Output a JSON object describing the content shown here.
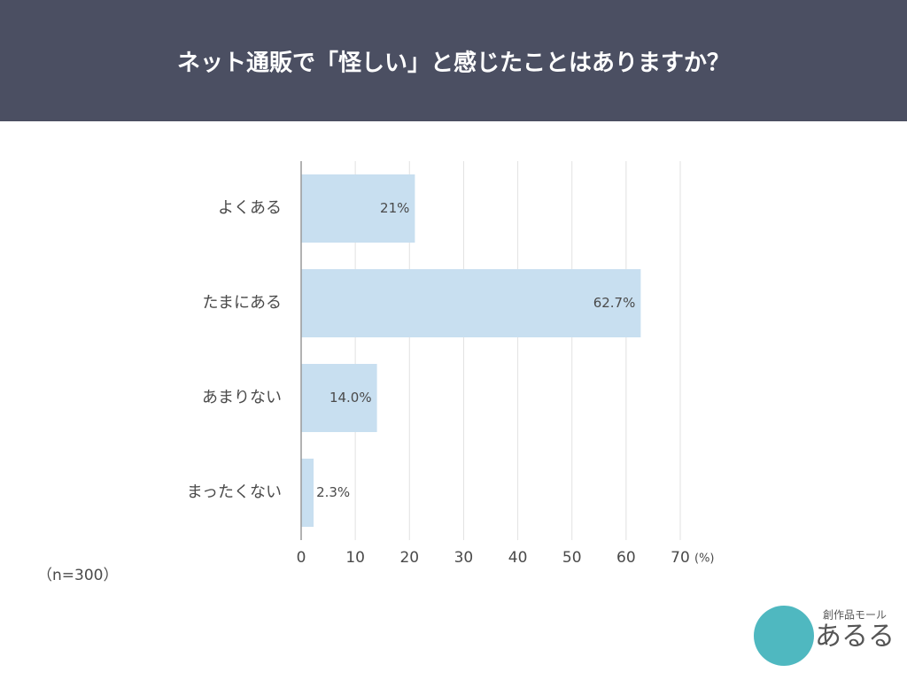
{
  "chart_data": {
    "type": "bar",
    "orientation": "horizontal",
    "title": "ネット通販で「怪しい」と感じたことはありますか？",
    "categories": [
      "よくある",
      "たまにある",
      "あまりない",
      "まったくない"
    ],
    "values": [
      21,
      62.7,
      14.0,
      2.3
    ],
    "value_labels": [
      "21%",
      "62.7%",
      "14.0%",
      "2.3%"
    ],
    "color": "#c8dff0",
    "xlim": [
      0,
      70
    ],
    "xticks": [
      0,
      10,
      20,
      30,
      40,
      50,
      60,
      70
    ],
    "x_unit": "(%)",
    "grid": true,
    "note": "（n=300）"
  },
  "logo": {
    "tagline": "創作品モール",
    "name": "あるる"
  }
}
